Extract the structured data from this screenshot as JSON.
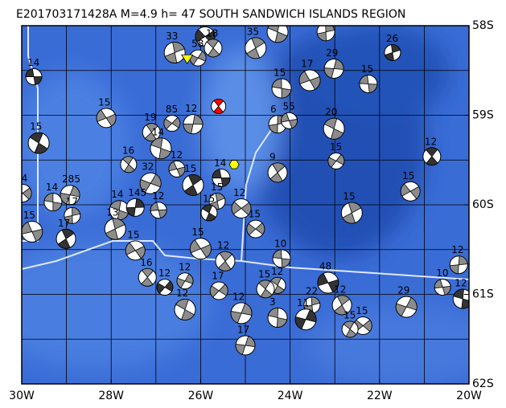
{
  "title": "E201703171428A  M=4.9  h= 47  SOUTH SANDWICH ISLANDS REGION",
  "map": {
    "lonlim": [
      -30,
      -20
    ],
    "latlim": [
      -62,
      -58
    ],
    "lon_ticks": [
      {
        "value": -30,
        "label": "30W"
      },
      {
        "value": -28,
        "label": "28W"
      },
      {
        "value": -26,
        "label": "26W"
      },
      {
        "value": -24,
        "label": "24W"
      },
      {
        "value": -22,
        "label": "22W"
      },
      {
        "value": -20,
        "label": "20W"
      }
    ],
    "lat_ticks": [
      {
        "value": -58,
        "label": "58S"
      },
      {
        "value": -59,
        "label": "59S"
      },
      {
        "value": -60,
        "label": "60S"
      },
      {
        "value": -61,
        "label": "61S"
      },
      {
        "value": -62,
        "label": "62S"
      }
    ],
    "grid": {
      "lon_step": 1,
      "lat_step": 0.5
    },
    "main_event": {
      "lon": -25.6,
      "lat": -58.9,
      "color": "#ff0000"
    },
    "station_hexagon": {
      "lon": -25.25,
      "lat": -59.55,
      "color": "#ffff00"
    },
    "station_triangle": {
      "lon": -26.3,
      "lat": -58.37,
      "color": "#ffff00"
    },
    "events": [
      {
        "lon": -29.73,
        "lat": -58.57,
        "depth": "14"
      },
      {
        "lon": -26.58,
        "lat": -58.3,
        "depth": "33"
      },
      {
        "lon": -28.11,
        "lat": -59.03,
        "depth": "15"
      },
      {
        "lon": -27.1,
        "lat": -59.19,
        "depth": "19"
      },
      {
        "lon": -26.64,
        "lat": -59.09,
        "depth": "85"
      },
      {
        "lon": -29.62,
        "lat": -59.31,
        "depth": "15"
      },
      {
        "lon": -28.92,
        "lat": -59.89,
        "depth": "285"
      },
      {
        "lon": -29.3,
        "lat": -59.97,
        "depth": "14"
      },
      {
        "lon": -28.87,
        "lat": -60.12,
        "depth": "17"
      },
      {
        "lon": -29.77,
        "lat": -60.3,
        "depth": "15"
      },
      {
        "lon": -29.01,
        "lat": -60.38,
        "depth": "17"
      },
      {
        "lon": -29.98,
        "lat": -59.87,
        "depth": "24"
      },
      {
        "lon": -27.61,
        "lat": -59.55,
        "depth": "16"
      },
      {
        "lon": -27.12,
        "lat": -59.76,
        "depth": "32"
      },
      {
        "lon": -27.82,
        "lat": -60.06,
        "depth": "14"
      },
      {
        "lon": -27.46,
        "lat": -60.03,
        "depth": "145"
      },
      {
        "lon": -26.94,
        "lat": -60.06,
        "depth": "12"
      },
      {
        "lon": -27.91,
        "lat": -60.27,
        "depth": "13"
      },
      {
        "lon": -27.46,
        "lat": -60.51,
        "depth": "15"
      },
      {
        "lon": -27.19,
        "lat": -60.81,
        "depth": "16"
      },
      {
        "lon": -26.8,
        "lat": -60.92,
        "depth": "12"
      },
      {
        "lon": -26.35,
        "lat": -61.17,
        "depth": "12"
      },
      {
        "lon": -25.0,
        "lat": -61.57,
        "depth": "17"
      },
      {
        "lon": -24.19,
        "lat": -60.6,
        "depth": "10"
      },
      {
        "lon": -23.51,
        "lat": -61.12,
        "depth": "22"
      },
      {
        "lon": -23.15,
        "lat": -60.87,
        "depth": "48"
      },
      {
        "lon": -22.84,
        "lat": -61.12,
        "depth": "12"
      },
      {
        "lon": -22.37,
        "lat": -61.35,
        "depth": "15"
      },
      {
        "lon": -22.66,
        "lat": -61.39,
        "depth": "15"
      },
      {
        "lon": -21.4,
        "lat": -61.14,
        "depth": "29"
      },
      {
        "lon": -20.14,
        "lat": -61.05,
        "depth": "12"
      },
      {
        "lon": -20.23,
        "lat": -60.67,
        "depth": "12"
      },
      {
        "lon": -20.59,
        "lat": -60.92,
        "depth": "10"
      },
      {
        "lon": -22.62,
        "lat": -60.09,
        "depth": "15"
      },
      {
        "lon": -21.31,
        "lat": -59.85,
        "depth": "15"
      },
      {
        "lon": -20.83,
        "lat": -59.46,
        "depth": "12"
      },
      {
        "lon": -22.97,
        "lat": -59.51,
        "depth": "15"
      },
      {
        "lon": -23.02,
        "lat": -59.15,
        "depth": "20"
      },
      {
        "lon": -23.02,
        "lat": -58.48,
        "depth": "29"
      },
      {
        "lon": -22.25,
        "lat": -58.65,
        "depth": "15"
      },
      {
        "lon": -21.71,
        "lat": -58.3,
        "depth": "26"
      },
      {
        "lon": -23.56,
        "lat": -58.61,
        "depth": "17"
      },
      {
        "lon": -24.28,
        "lat": -59.64,
        "depth": "9"
      },
      {
        "lon": -24.77,
        "lat": -60.27,
        "depth": "15"
      },
      {
        "lon": -24.28,
        "lat": -60.9,
        "depth": "12"
      },
      {
        "lon": -23.65,
        "lat": -61.28,
        "depth": "11"
      },
      {
        "lon": -24.28,
        "lat": -61.26,
        "depth": "3"
      },
      {
        "lon": -24.28,
        "lat": -59.1,
        "depth": "6"
      },
      {
        "lon": -24.02,
        "lat": -59.06,
        "depth": "55"
      },
      {
        "lon": -24.77,
        "lat": -58.25,
        "depth": "35"
      },
      {
        "lon": -25.9,
        "lat": -58.12,
        "depth": "118"
      },
      {
        "lon": -25.72,
        "lat": -58.25,
        "depth": "18"
      },
      {
        "lon": -26.06,
        "lat": -58.36,
        "depth": "58"
      },
      {
        "lon": -24.28,
        "lat": -58.07,
        "depth": "36"
      },
      {
        "lon": -26.17,
        "lat": -59.1,
        "depth": "12"
      },
      {
        "lon": -25.54,
        "lat": -59.7,
        "depth": "14"
      },
      {
        "lon": -25.63,
        "lat": -59.96,
        "depth": "15"
      },
      {
        "lon": -26.0,
        "lat": -60.49,
        "depth": "15"
      },
      {
        "lon": -25.45,
        "lat": -60.63,
        "depth": "12"
      },
      {
        "lon": -25.59,
        "lat": -60.96,
        "depth": "17"
      },
      {
        "lon": -25.81,
        "lat": -60.09,
        "depth": "15"
      },
      {
        "lon": -25.09,
        "lat": -61.21,
        "depth": "12"
      },
      {
        "lon": -24.19,
        "lat": -58.7,
        "depth": "15"
      },
      {
        "lon": -23.2,
        "lat": -58.07,
        "depth": "27"
      },
      {
        "lon": -26.53,
        "lat": -59.6,
        "depth": "12"
      },
      {
        "lon": -26.17,
        "lat": -59.78,
        "depth": "15"
      },
      {
        "lon": -25.09,
        "lat": -60.04,
        "depth": "12"
      },
      {
        "lon": -24.55,
        "lat": -60.94,
        "depth": "15"
      },
      {
        "lon": -26.35,
        "lat": -60.85,
        "depth": "12"
      },
      {
        "lon": -26.89,
        "lat": -59.37,
        "depth": "14"
      }
    ]
  }
}
